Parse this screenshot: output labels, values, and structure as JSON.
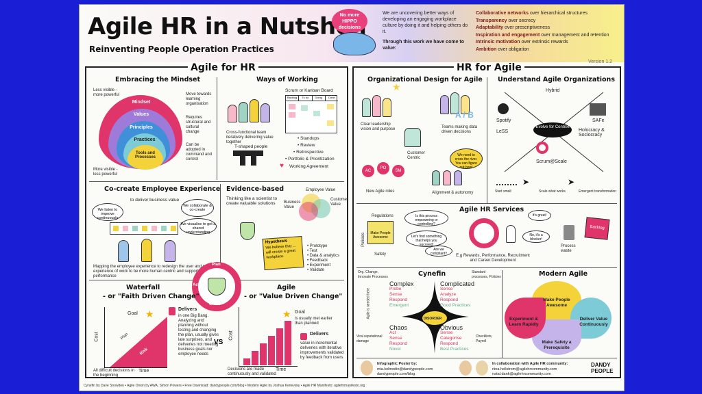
{
  "poster": {
    "title": "Agile HR in a Nutshell",
    "subtitle": "Reinventing People Operation Practices",
    "hippo_bubble": "No more HIPPO decisions",
    "intro_1": "We are uncovering better ways of developing an engaging workplace culture by doing it and helping others do it.",
    "intro_2": "Through this work we have come to value:",
    "values": [
      {
        "a": "Collaborative networks",
        "b": "over hierarchical structures"
      },
      {
        "a": "Transparency",
        "b": "over secrecy"
      },
      {
        "a": "Adaptability",
        "b": "over prescriptiveness"
      },
      {
        "a": "Inspiration and engagement",
        "b": "over management and retention"
      },
      {
        "a": "Intrinsic motivation",
        "b": "over extrinsic rewards"
      },
      {
        "a": "Ambition",
        "b": "over obligation"
      }
    ],
    "version": "Version 1.2"
  },
  "left": {
    "title": "Agile for HR",
    "mindset": {
      "title": "Embracing the Mindset",
      "less_visible": "Less visible - more powerful",
      "more_visible": "More visible - less powerful",
      "layers": [
        "Mindset",
        "Values",
        "Principles",
        "Practices",
        "Tools and Processes"
      ],
      "notes": [
        "Move towards learning organisation",
        "Requires structural and cultural change",
        "Can be adopted in command and control"
      ]
    },
    "ways": {
      "title": "Ways of Working",
      "board_title": "Scrum or Kanban Board",
      "board_cols": [
        "Backlog",
        "To do",
        "Doing",
        "Done"
      ],
      "team": "Cross-functional team iteratively delivering value together",
      "tshaped": "T-shaped people",
      "items": [
        "• Standups",
        "• Review",
        "• Retrospective",
        "• Portfolio & Prioritization",
        "Working Agreement"
      ]
    },
    "cocreate": {
      "title": "Co-create Employee Experience",
      "deliver": "to deliver business value",
      "b1": "We listen to improve continuously",
      "b2": "We collaborate & co-create",
      "b3": "We visualise to get a shared understanding",
      "caption": "Mapping the employee experience to redesign the user and people experience of work to be more human centric and support high performance"
    },
    "evidence": {
      "title": "Evidence-based",
      "think": "Thinking like a scientist to create valuable solutions",
      "venn": [
        "Employee Value",
        "Business Value",
        "Customer Value"
      ],
      "hyp_title": "Hypothesis",
      "hyp": "We believe that ... will create a great workplace.",
      "steps": [
        "• Prototype",
        "• Test",
        "• Data & analytics",
        "• Feedback",
        "• Experiment",
        "• Validate"
      ]
    },
    "pdca": [
      "Plan",
      "Do",
      "Check",
      "Act"
    ],
    "waterfall": {
      "title1": "Waterfall",
      "title2": "- or \"Faith Driven Change\"",
      "goal": "Goal",
      "plan": "Plan",
      "risk": "Risk",
      "cost": "Cost",
      "time": "Time",
      "delivers_h": "Delivers",
      "delivers": "in one Big Bang. Analyzing and planning without testing and changing the plan, usually gives late surprises, and deliveries not meeting business goals nor employee needs",
      "decisions": "All difficult decisions in the beginning",
      "vs": "VS"
    },
    "agile": {
      "title1": "Agile",
      "title2": "- or \"Value Driven Change\"",
      "goal": "Goal",
      "goal_note": "is usually met earlier than planned",
      "cost": "Cost",
      "time": "Time",
      "delivers_h": "Delivers",
      "delivers": "value in incremental deliveries with iterative improvements validated by feedback from users",
      "decisions": "Decisions are made continuously and validated"
    }
  },
  "right": {
    "title": "HR for Agile",
    "orgdesign": {
      "title": "Organizational Design for Agile",
      "items": [
        "Clear leadership vision and purpose",
        "Teams making data driven decisions",
        "Customer Centric",
        "New Agile roles",
        "Alignment & autonomy"
      ],
      "roles": [
        "AC",
        "PO",
        "SM"
      ],
      "ab": "A / B",
      "bubble": "We need to cross the river. You can figure out how!"
    },
    "understand": {
      "title": "Understand Agile Organizations",
      "labels": [
        "Hybrid",
        "Spotify",
        "SAFe",
        "LeSS",
        "Holocracy & Sociocracy",
        "Scrum@Scale"
      ],
      "center": "Evolve for Context",
      "steps": [
        "Start small",
        "Scale what works",
        "Emergent transformation"
      ]
    },
    "services": {
      "title": "Agile HR Services",
      "regulations": "Regulations",
      "policies": "Policies",
      "sticky": "Make People Awesome",
      "safety": "Safety",
      "q1": "Is this process empowering or controlling?",
      "q2": "Let's find something that helps you succeed!",
      "q3": "Are we compliant?",
      "ex": "E.g Rewards, Performance, Recruitment and Career Development",
      "great": "It's great!",
      "blocker": "No, it's a blocker!",
      "waste": "Process waste",
      "backlog": "Backlog"
    },
    "cynefin": {
      "title": "Cynefin",
      "left_note": "Org. Change, Innovate Processes",
      "right_note": "Standard processes, Policies",
      "side_note": "Agile is needed here",
      "left_bottom": "Viral reputational damage",
      "right_bottom": "Checklists, Payroll",
      "disorder": "DISORDER",
      "complex": {
        "h": "Complex",
        "lines": [
          "Probe",
          "Sense",
          "Respond",
          "Emergent"
        ]
      },
      "complicated": {
        "h": "Complicated",
        "lines": [
          "Sense",
          "Analyze",
          "Respond",
          "Good Practices"
        ]
      },
      "chaos": {
        "h": "Chaos",
        "lines": [
          "Act",
          "Sense",
          "Respond",
          "Novel"
        ]
      },
      "obvious": {
        "h": "Obvious",
        "lines": [
          "Sense",
          "Categorise",
          "Respond",
          "Best Practices"
        ]
      }
    },
    "modern": {
      "title": "Modern Agile",
      "petals": [
        "Make People Awesome",
        "Deliver Value Continuously",
        "Make Safety a Prerequisite",
        "Experiment & Learn Rapidly"
      ]
    },
    "credits": {
      "poster_h": "Infographic Poster by:",
      "emails1": [
        "mia.kolmodin@dandypeople.com",
        "dandypeople.com/blog"
      ],
      "collab_h": "In collaboration with Agile HR community:",
      "emails2": [
        "riina.hellstrom@agilehrcommunity.com",
        "natal.dank@agilehrcommunity.com"
      ],
      "brand": "DANDY PEOPLE"
    }
  },
  "footer": "Cynefin by Dave Snowden  •  Agile Onion by AWA, Simon Powers  •  Free Download: dandypeople.com/blog  •  Modern Agile by Joshua Kerievsky  •  Agile HR Manifesto: agilehrmanifesto.org",
  "colors": {
    "page_bg": "#1a1fd6",
    "accent": "#e0356a",
    "green": "#6aa88c",
    "yellow": "#f4d23a"
  }
}
